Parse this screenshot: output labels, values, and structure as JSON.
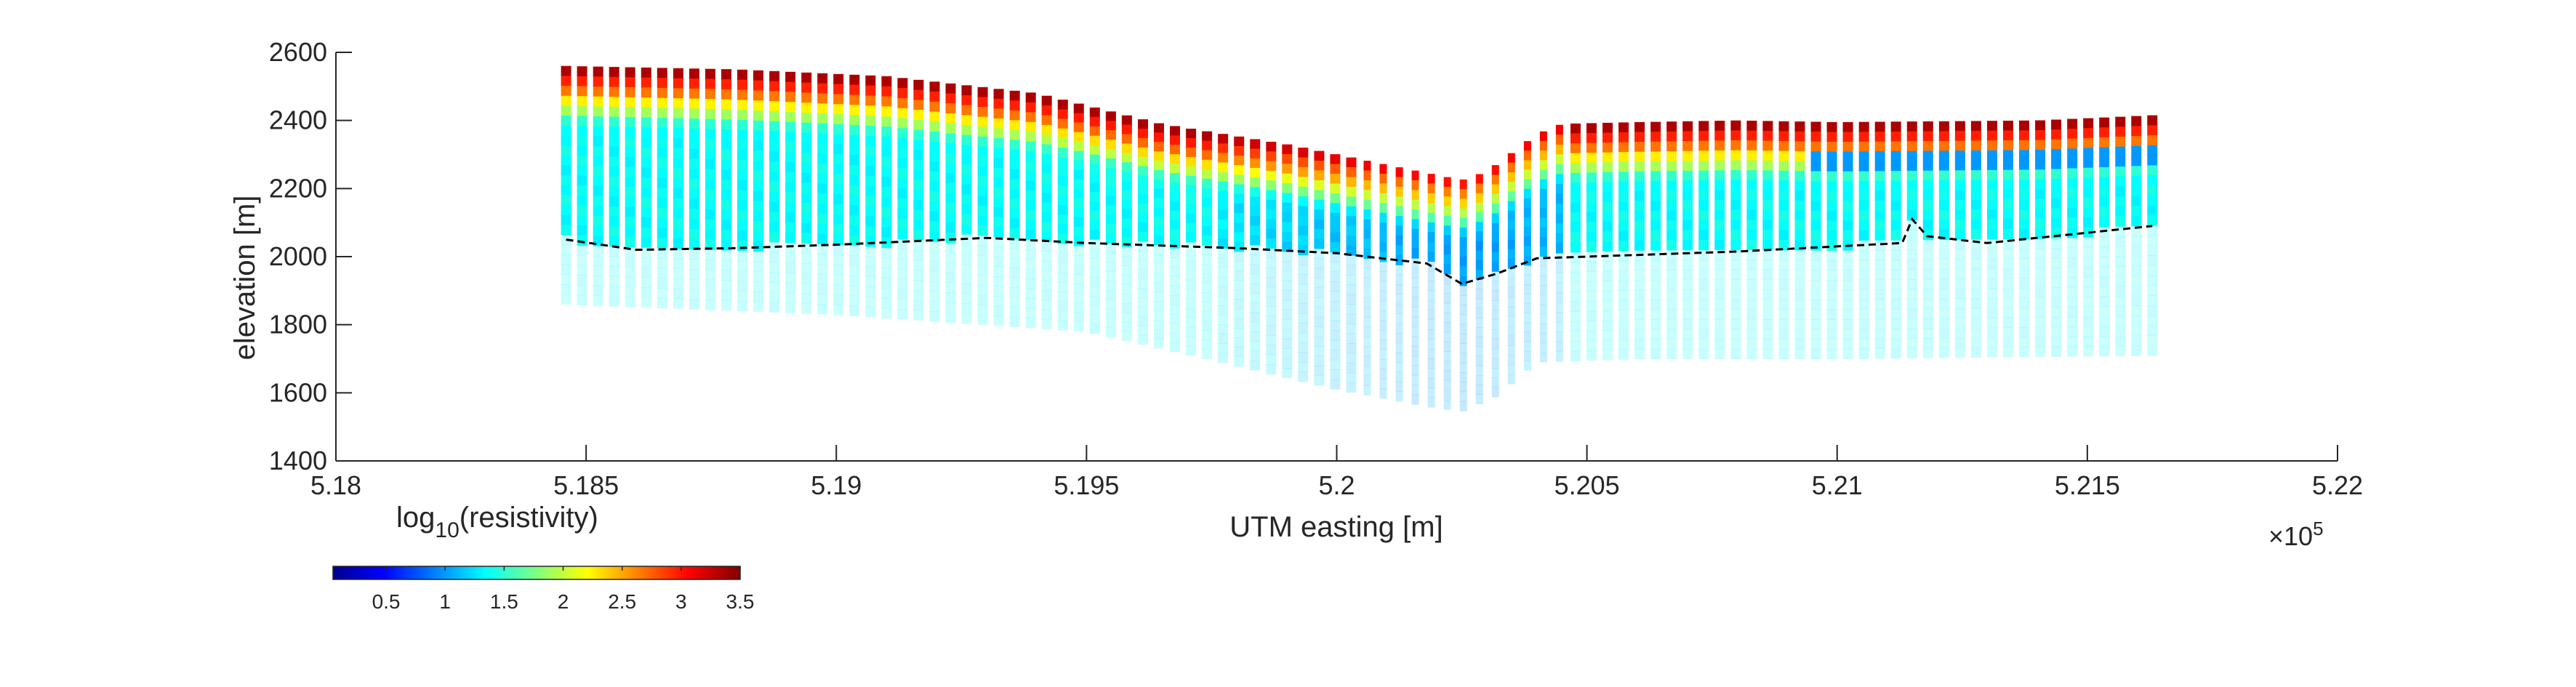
{
  "chart_data": {
    "type": "heatmap",
    "title": "",
    "xlabel": "UTM easting [m]",
    "ylabel": "elevation [m]",
    "x_exponent_label": "×10",
    "x_exponent_power": "5",
    "xlim": [
      5.18,
      5.22
    ],
    "ylim": [
      1400,
      2600
    ],
    "x_tick_labels": [
      "5.18",
      "5.185",
      "5.19",
      "5.195",
      "5.2",
      "5.205",
      "5.21",
      "5.215",
      "5.22"
    ],
    "y_tick_labels": [
      "1400",
      "1600",
      "1800",
      "2000",
      "2200",
      "2400",
      "2600"
    ],
    "colorbar": {
      "label": "log",
      "label_sub": "10",
      "label_suffix": "(resistivity)",
      "range": [
        0.05,
        3.5
      ],
      "tick_labels": [
        "0.5",
        "1",
        "1.5",
        "2",
        "2.5",
        "3",
        "3.5"
      ],
      "colormap": "jet"
    },
    "soundings": {
      "x_start": 5.1846,
      "x_end": 5.2163,
      "count": 100,
      "top_elevation_profile": [
        [
          5.1846,
          2560
        ],
        [
          5.188,
          2550
        ],
        [
          5.191,
          2530
        ],
        [
          5.194,
          2480
        ],
        [
          5.1965,
          2390
        ],
        [
          5.199,
          2330
        ],
        [
          5.201,
          2270
        ],
        [
          5.2025,
          2225
        ],
        [
          5.203,
          2250
        ],
        [
          5.204,
          2360
        ],
        [
          5.2045,
          2390
        ],
        [
          5.206,
          2395
        ],
        [
          5.208,
          2400
        ],
        [
          5.21,
          2395
        ],
        [
          5.214,
          2400
        ],
        [
          5.2163,
          2415
        ]
      ],
      "bottom_elevation_profile": [
        [
          5.1846,
          1860
        ],
        [
          5.19,
          1830
        ],
        [
          5.195,
          1780
        ],
        [
          5.198,
          1680
        ],
        [
          5.2,
          1610
        ],
        [
          5.2018,
          1560
        ],
        [
          5.2025,
          1545
        ],
        [
          5.2032,
          1590
        ],
        [
          5.204,
          1690
        ],
        [
          5.206,
          1700
        ],
        [
          5.21,
          1700
        ],
        [
          5.2163,
          1710
        ]
      ],
      "doi_line_profile": [
        [
          5.1846,
          2050
        ],
        [
          5.186,
          2020
        ],
        [
          5.188,
          2025
        ],
        [
          5.19,
          2035
        ],
        [
          5.193,
          2055
        ],
        [
          5.195,
          2040
        ],
        [
          5.198,
          2025
        ],
        [
          5.2,
          2010
        ],
        [
          5.2018,
          1980
        ],
        [
          5.2025,
          1920
        ],
        [
          5.2032,
          1950
        ],
        [
          5.204,
          1995
        ],
        [
          5.206,
          2005
        ],
        [
          5.208,
          2015
        ],
        [
          5.21,
          2030
        ],
        [
          5.2113,
          2040
        ],
        [
          5.2115,
          2110
        ],
        [
          5.2118,
          2060
        ],
        [
          5.213,
          2040
        ],
        [
          5.2163,
          2090
        ]
      ]
    }
  }
}
